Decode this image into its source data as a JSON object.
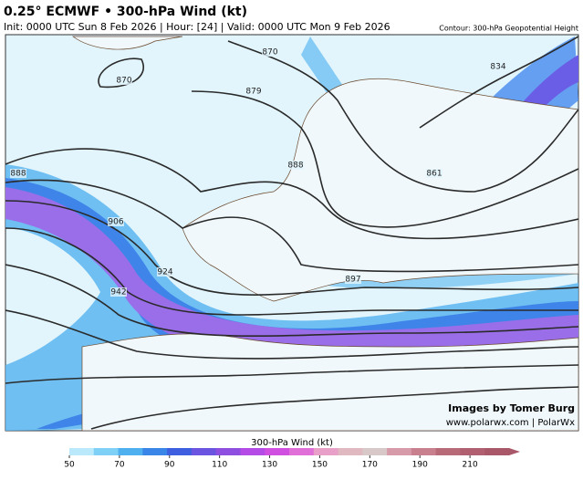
{
  "header": {
    "title": "0.25° ECMWF • 300-hPa Wind (kt)",
    "subtitle": "Init: 0000 UTC Sun 8 Feb 2026 | Hour: [24] | Valid: 0000 UTC Mon 9 Feb 2026",
    "contour_note": "Contour: 300-hPa Geopotential Height"
  },
  "map": {
    "contour_labels": [
      "870",
      "870",
      "879",
      "888",
      "888",
      "906",
      "924",
      "942",
      "897",
      "861",
      "834"
    ],
    "credit": [
      "Images by Tomer Burg",
      "www.polarwx.com | PolarWx"
    ]
  },
  "colorbar": {
    "title": "300-hPa Wind (kt)",
    "ticks": [
      50,
      70,
      90,
      110,
      130,
      150,
      170,
      190,
      210
    ],
    "lim": [
      50,
      230
    ]
  }
}
